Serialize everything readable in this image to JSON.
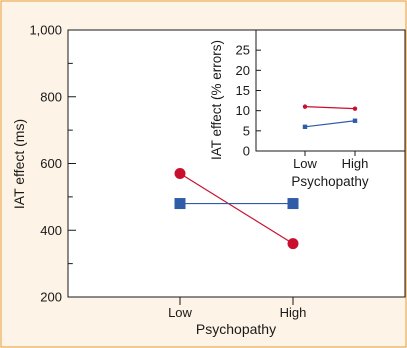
{
  "colors": {
    "background": "#fdf3e6",
    "border": "#e8a23c",
    "red_series": "#c8102e",
    "blue_series": "#2f5ca8",
    "axis": "#1a1a1a"
  },
  "chart_data": [
    {
      "type": "line",
      "xlabel": "Psychopathy",
      "ylabel": "IAT effect (ms)",
      "categories": [
        "Low",
        "High"
      ],
      "ylim": [
        200,
        1000
      ],
      "yticks": [
        200,
        400,
        600,
        800,
        1000
      ],
      "ytick_labels": [
        "200",
        "400",
        "600",
        "800",
        "1,000"
      ],
      "grid": false,
      "series": [
        {
          "color": "#c8102e",
          "marker": "circle",
          "values": [
            570,
            360
          ]
        },
        {
          "color": "#2f5ca8",
          "marker": "square",
          "values": [
            480,
            480
          ]
        }
      ]
    },
    {
      "type": "line",
      "xlabel": "Psychopathy",
      "ylabel": "IAT effect (% errors)",
      "categories": [
        "Low",
        "High"
      ],
      "ylim": [
        0,
        30
      ],
      "yticks": [
        0,
        5,
        10,
        15,
        20,
        25
      ],
      "ytick_labels": [
        "0",
        "5",
        "10",
        "15",
        "20",
        "25"
      ],
      "grid": false,
      "series": [
        {
          "color": "#c8102e",
          "marker": "circle",
          "values": [
            11,
            10.5
          ]
        },
        {
          "color": "#2f5ca8",
          "marker": "square",
          "values": [
            6,
            7.5
          ]
        }
      ]
    }
  ]
}
